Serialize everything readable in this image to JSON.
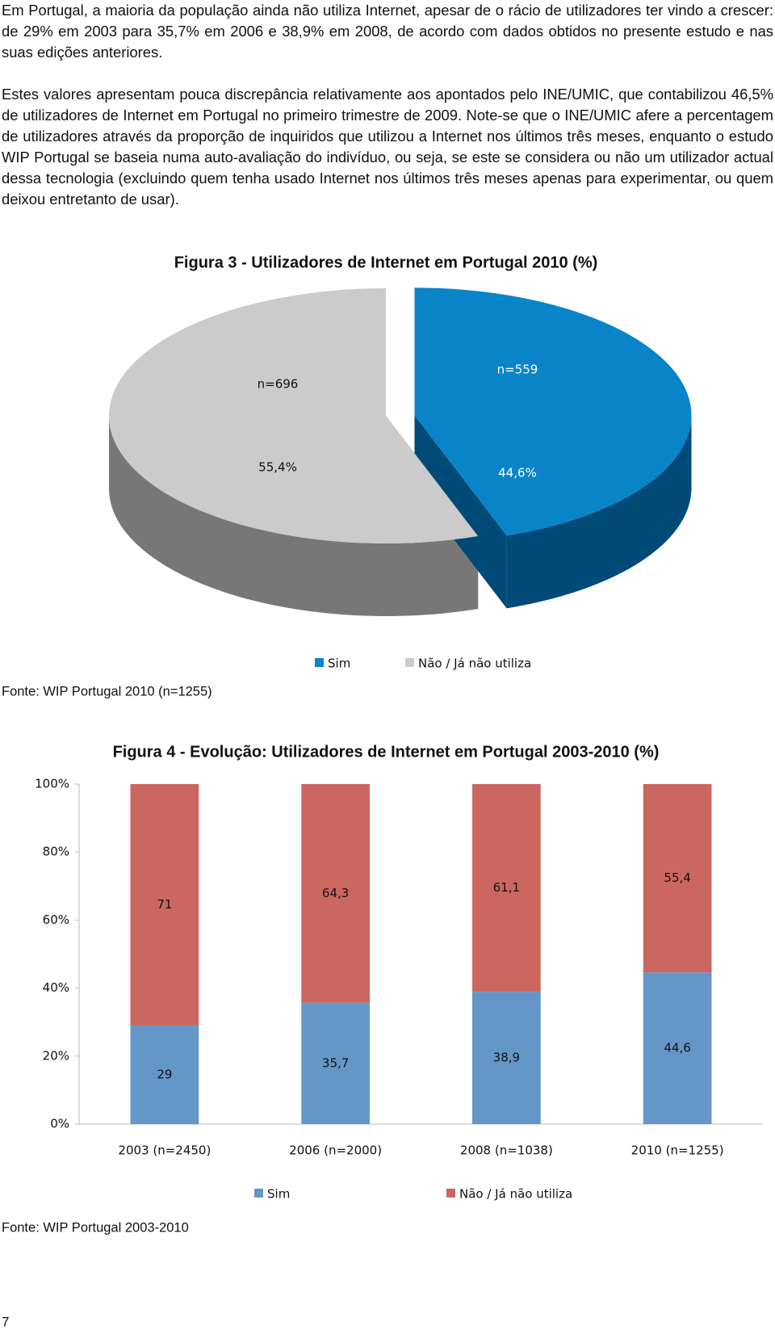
{
  "paragraphs": [
    "Em Portugal, a maioria da população ainda não utiliza Internet, apesar de o rácio de utilizadores ter vindo a crescer: de 29% em 2003 para 35,7% em 2006 e 38,9% em 2008, de acordo com dados obtidos no presente estudo e nas suas edições anteriores.",
    "Estes valores apresentam pouca discrepância relativamente aos apontados pelo INE/UMIC, que contabilizou 46,5% de utilizadores de Internet em Portugal no primeiro trimestre de 2009. Note-se que o INE/UMIC afere a percentagem de utilizadores através da proporção de inquiridos que utilizou a Internet nos últimos três meses, enquanto o estudo WIP Portugal se baseia numa auto-avaliação do indivíduo, ou seja, se este se considera ou não um utilizador actual dessa tecnologia (excluindo quem tenha usado Internet nos últimos três meses apenas para experimentar, ou quem deixou entretanto de usar)."
  ],
  "chart_data": [
    {
      "type": "pie",
      "title": "Figura 3 - Utilizadores de Internet em Portugal 2010 (%)",
      "categories": [
        "Sim",
        "Não / Já não utiliza"
      ],
      "values": [
        44.6,
        55.4
      ],
      "value_labels": [
        "44,6%",
        "55,4%"
      ],
      "annotations": [
        "n=559",
        "n=696"
      ],
      "colors": [
        "#0a84c8",
        "#cbcbcb"
      ],
      "side_colors": [
        "#004a78",
        "#777777"
      ],
      "source": "Fonte: WIP Portugal 2010 (n=1255)"
    },
    {
      "type": "stacked_bar",
      "title": "Figura 4 - Evolução: Utilizadores de Internet em Portugal 2003-2010 (%)",
      "categories": [
        "2003 (n=2450)",
        "2006 (n=2000)",
        "2008 (n=1038)",
        "2010 (n=1255)"
      ],
      "series": [
        {
          "name": "Sim",
          "color": "#6496c8",
          "values": [
            29,
            35.7,
            38.9,
            44.6
          ],
          "value_labels": [
            "29",
            "35,7",
            "38,9",
            "44,6"
          ]
        },
        {
          "name": "Não / Já não utiliza",
          "color": "#cc6660",
          "values": [
            71,
            64.3,
            61.1,
            55.4
          ],
          "value_labels": [
            "71",
            "64,3",
            "61,1",
            "55,4"
          ]
        }
      ],
      "ylim": [
        0,
        100
      ],
      "yticks": [
        {
          "value": 0,
          "label": "0%"
        },
        {
          "value": 20,
          "label": "20%"
        },
        {
          "value": 40,
          "label": "40%"
        },
        {
          "value": 60,
          "label": "60%"
        },
        {
          "value": 80,
          "label": "80%"
        },
        {
          "value": 100,
          "label": "100%"
        }
      ],
      "grid": false,
      "source": "Fonte: WIP Portugal 2003-2010"
    }
  ],
  "page_number": "7"
}
